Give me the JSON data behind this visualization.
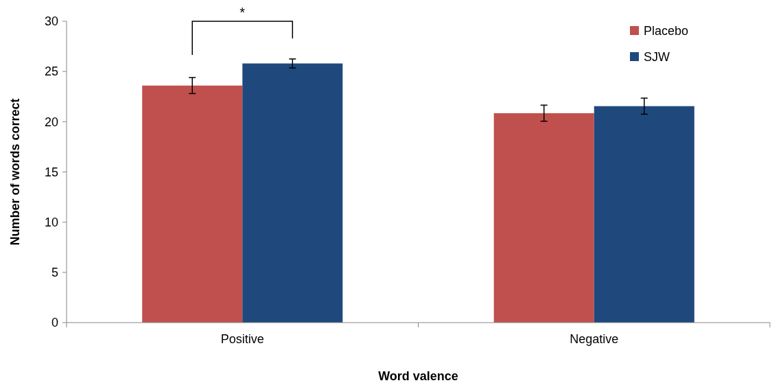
{
  "chart_data": {
    "type": "bar",
    "xlabel": "Word valence",
    "ylabel": "Number of words correct",
    "categories": [
      "Positive",
      "Negative"
    ],
    "series": [
      {
        "name": "Placebo",
        "color": "#c0504d",
        "values": [
          23.6,
          20.85
        ],
        "errors": [
          0.8,
          0.8
        ]
      },
      {
        "name": "SJW",
        "color": "#1f497d",
        "values": [
          25.8,
          21.55
        ],
        "errors": [
          0.45,
          0.8
        ]
      }
    ],
    "ylim": [
      0,
      30
    ],
    "yticks": [
      0,
      5,
      10,
      15,
      20,
      25,
      30
    ],
    "legend": "top right",
    "annotations": [
      "*"
    ]
  }
}
